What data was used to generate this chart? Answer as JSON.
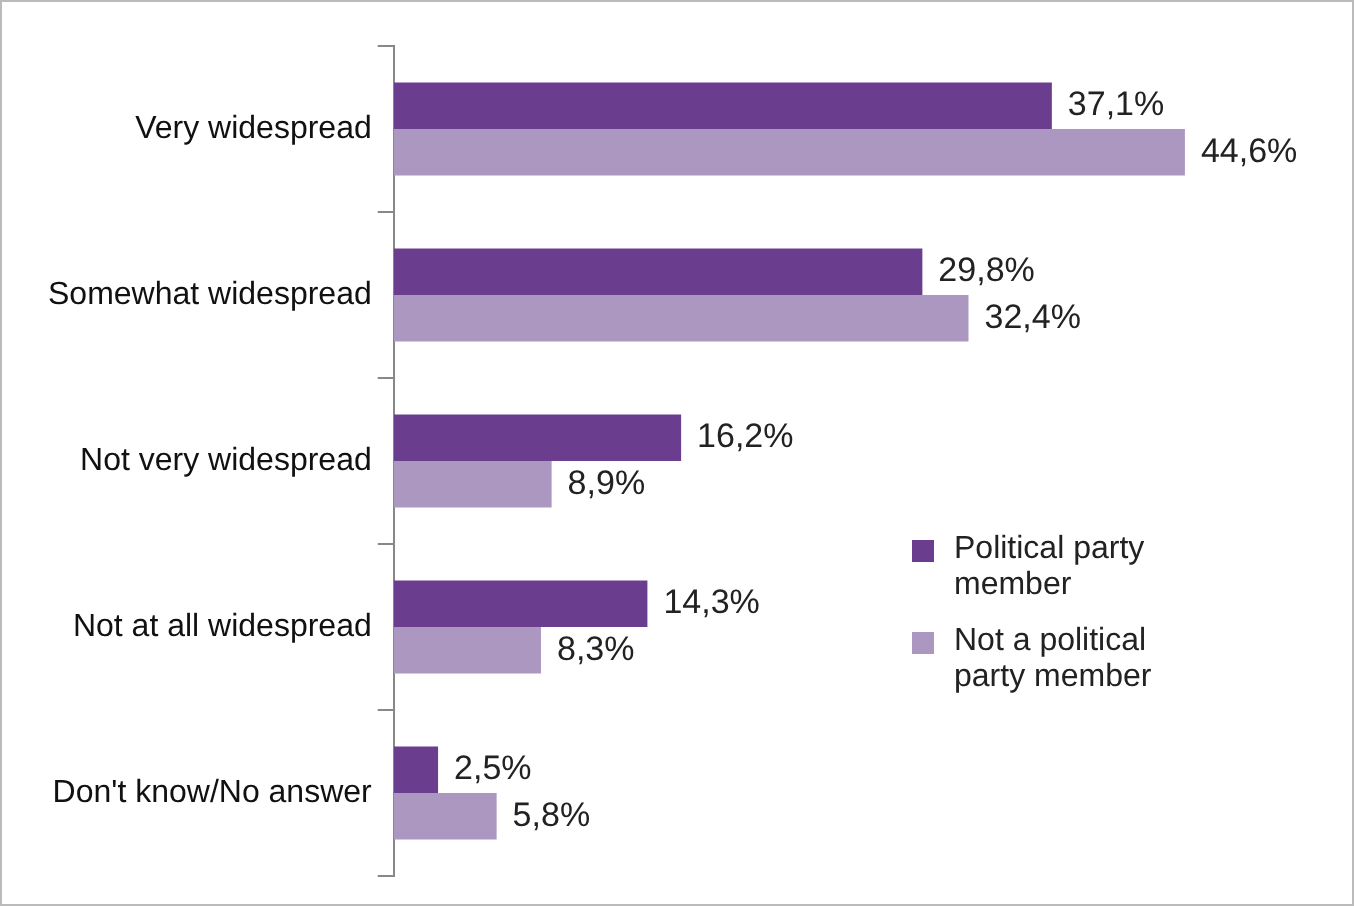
{
  "chart_data": {
    "type": "bar",
    "orientation": "horizontal",
    "categories": [
      "Very widespread",
      "Somewhat widespread",
      "Not very widespread",
      "Not at all widespread",
      "Don't know/No answer"
    ],
    "series": [
      {
        "name": "Political party member",
        "color": "#6a3d8e",
        "values": [
          37.1,
          29.8,
          16.2,
          14.3,
          2.5
        ],
        "value_labels": [
          "37,1%",
          "29,8%",
          "16,2%",
          "14,3%",
          "2,5%"
        ]
      },
      {
        "name": "Not a political party member",
        "color": "#ab97bf",
        "values": [
          44.6,
          32.4,
          8.9,
          8.3,
          5.8
        ],
        "value_labels": [
          "44,6%",
          "32,4%",
          "8,9%",
          "8,3%",
          "5,8%"
        ]
      }
    ],
    "tick_labels": "y",
    "legend": "right"
  }
}
